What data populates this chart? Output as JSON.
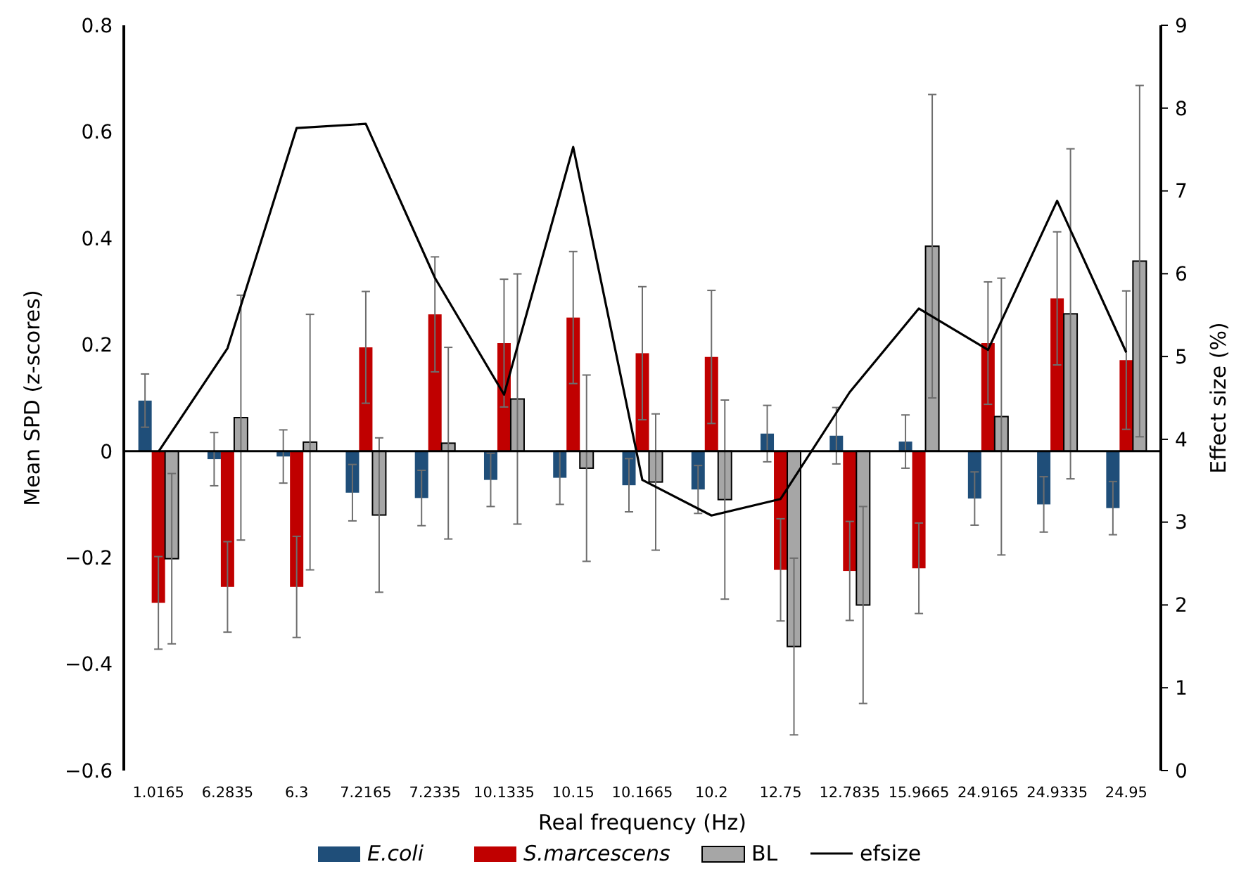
{
  "chart_data": {
    "type": "bar",
    "xlabel": "Real frequency (Hz)",
    "ylabel": "Mean SPD (z-scores)",
    "y2label": "Effect size (%)",
    "categories": [
      "1.0165",
      "6.2835",
      "6.3",
      "7.2165",
      "7.2335",
      "10.1335",
      "10.15",
      "10.1665",
      "10.2",
      "12.75",
      "12.7835",
      "15.9665",
      "24.9165",
      "24.9335",
      "24.95"
    ],
    "series": [
      {
        "name": "E.coli",
        "color": "#1f4e79",
        "values": [
          0.095,
          -0.015,
          -0.01,
          -0.078,
          -0.088,
          -0.054,
          -0.05,
          -0.064,
          -0.072,
          0.033,
          0.029,
          0.018,
          -0.089,
          -0.1,
          -0.107
        ],
        "errors": [
          0.05,
          0.05,
          0.05,
          0.053,
          0.052,
          0.05,
          0.05,
          0.05,
          0.045,
          0.053,
          0.053,
          0.05,
          0.05,
          0.052,
          0.05
        ]
      },
      {
        "name": "S.marcescens",
        "color": "#c00000",
        "values": [
          -0.285,
          -0.255,
          -0.255,
          0.195,
          0.257,
          0.203,
          0.251,
          0.184,
          0.177,
          -0.223,
          -0.225,
          -0.22,
          0.203,
          0.287,
          0.171
        ],
        "errors": [
          0.087,
          0.085,
          0.095,
          0.105,
          0.108,
          0.12,
          0.124,
          0.125,
          0.125,
          0.096,
          0.093,
          0.085,
          0.115,
          0.125,
          0.13
        ]
      },
      {
        "name": "BL",
        "color": "#a6a6a6",
        "values": [
          -0.202,
          0.063,
          0.017,
          -0.12,
          0.015,
          0.098,
          -0.032,
          -0.058,
          -0.091,
          -0.367,
          -0.289,
          0.385,
          0.065,
          0.258,
          0.357
        ],
        "errors": [
          0.16,
          0.23,
          0.24,
          0.145,
          0.18,
          0.235,
          0.175,
          0.128,
          0.187,
          0.166,
          0.185,
          0.285,
          0.26,
          0.31,
          0.33
        ]
      },
      {
        "name": "efsize",
        "type": "line",
        "axis": "y2",
        "color": "#000000",
        "values": [
          3.85,
          5.1,
          7.76,
          7.81,
          5.95,
          4.54,
          7.53,
          3.51,
          3.08,
          3.28,
          4.57,
          5.58,
          5.08,
          6.88,
          5.05
        ]
      }
    ],
    "ylim": [
      -0.6,
      0.8
    ],
    "yticks": [
      {
        "value": -0.6,
        "label": "−0.6"
      },
      {
        "value": -0.4,
        "label": "−0.4"
      },
      {
        "value": -0.2,
        "label": "−0.2"
      },
      0,
      0.2,
      0.4,
      0.6,
      0.8
    ],
    "y2lim": [
      0,
      9
    ],
    "y2ticks": [
      0,
      1,
      2,
      3,
      4,
      5,
      6,
      7,
      8,
      9
    ],
    "legend": "bottom",
    "marker": "none",
    "line_style": "solid"
  }
}
